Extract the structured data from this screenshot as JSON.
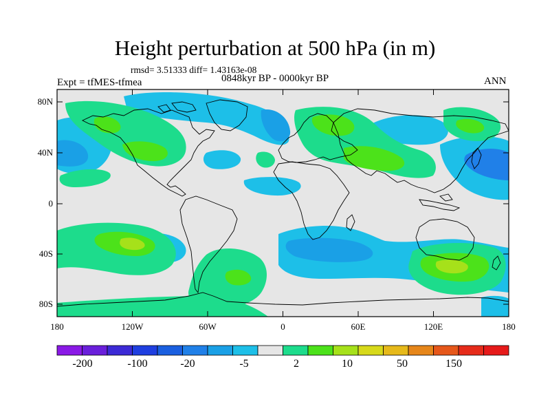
{
  "title": "Height perturbation at 500 hPa (in m)",
  "stats": "rmsd= 3.51333 diff= 1.43163e-08",
  "period": "0848kyr BP - 0000kyr BP",
  "experiment": "Expt = tfMES-tfmea",
  "season": "ANN",
  "lat_ticks": [
    "80N",
    "40N",
    "0",
    "40S",
    "80S"
  ],
  "lon_ticks": [
    "180",
    "120W",
    "60W",
    "0",
    "60E",
    "120E",
    "180"
  ],
  "colorbar": {
    "colors": [
      "#8a19e6",
      "#6a1fdb",
      "#3c2ad6",
      "#1f3fe0",
      "#1a5fe0",
      "#2080e8",
      "#1aa0e6",
      "#1dbfe8",
      "#e6e6e6",
      "#1ddc8c",
      "#4ce21a",
      "#a6e11a",
      "#d7d91a",
      "#e6b91a",
      "#e6861a",
      "#e6571a",
      "#e62b1a",
      "#e61a1a"
    ],
    "labels": [
      "-200",
      "-100",
      "-20",
      "-5",
      "2",
      "10",
      "50",
      "150"
    ]
  },
  "colors": {
    "neutral": "#e6e6e6",
    "light_blue": "#1dbfe8",
    "blue": "#1aa0e6",
    "dark_blue": "#2080e8",
    "green": "#1ddc8c",
    "bright_green": "#4ce21a",
    "yellow_green": "#a6e11a",
    "coastline": "#000000"
  }
}
